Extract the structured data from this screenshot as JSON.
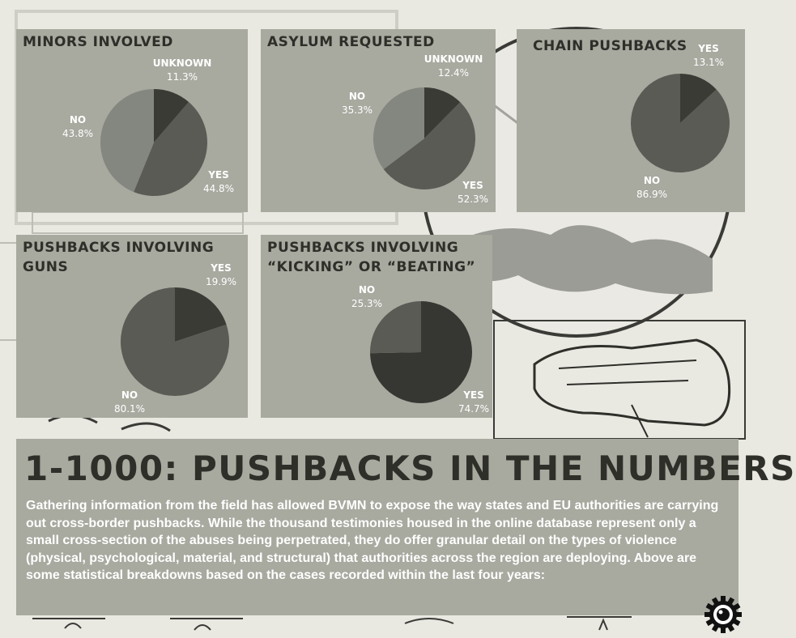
{
  "headline": "1-1000: PUSHBACKS IN THE NUMBERS",
  "body": "Gathering information from the field has allowed BVMN to expose the way states and EU authorities are carrying out cross-border pushbacks. While the thousand testimonies housed in the online database represent only a small cross-section of the abuses being perpetrated, they do offer granular detail on the types of violence (physical, psychological, material, and structural) that authorities across the region are deploying. Above are some statistical breakdowns based on the cases recorded within the last four years:",
  "logo_icon": "camera-gear-icon",
  "colors": {
    "panel": "#a8a99f",
    "headline": "#2f2f2a",
    "slice_yes": "#5a5b54",
    "slice_no": "#84877f",
    "slice_unknown": "#3a3b35",
    "slice_dark": "#363732"
  },
  "chart_data": [
    {
      "type": "pie",
      "title": "MINORS INVOLVED",
      "categories": [
        "UNKNOWN",
        "YES",
        "NO"
      ],
      "values": [
        11.3,
        44.8,
        43.8
      ],
      "labels": [
        "11.3%",
        "44.8%",
        "43.8%"
      ],
      "colors": [
        "#3a3b35",
        "#5a5b54",
        "#84877f"
      ]
    },
    {
      "type": "pie",
      "title": "ASYLUM REQUESTED",
      "categories": [
        "UNKNOWN",
        "YES",
        "NO"
      ],
      "values": [
        12.4,
        52.3,
        35.3
      ],
      "labels": [
        "12.4%",
        "52.3%",
        "35.3%"
      ],
      "colors": [
        "#3a3b35",
        "#5a5b54",
        "#84877f"
      ]
    },
    {
      "type": "pie",
      "title": "CHAIN PUSHBACKS",
      "categories": [
        "YES",
        "NO"
      ],
      "values": [
        13.1,
        86.9
      ],
      "labels": [
        "13.1%",
        "86.9%"
      ],
      "colors": [
        "#3a3b35",
        "#5a5b54"
      ]
    },
    {
      "type": "pie",
      "title": "PUSHBACKS INVOLVING GUNS",
      "categories": [
        "YES",
        "NO"
      ],
      "values": [
        19.9,
        80.1
      ],
      "labels": [
        "19.9%",
        "80.1%"
      ],
      "colors": [
        "#3a3b35",
        "#5a5b54"
      ]
    },
    {
      "type": "pie",
      "title": "PUSHBACKS INVOLVING “KICKING” OR “BEATING”",
      "categories": [
        "YES",
        "NO"
      ],
      "values": [
        74.7,
        25.3
      ],
      "labels": [
        "74.7%",
        "25.3%"
      ],
      "colors": [
        "#363732",
        "#5a5b54"
      ]
    }
  ]
}
